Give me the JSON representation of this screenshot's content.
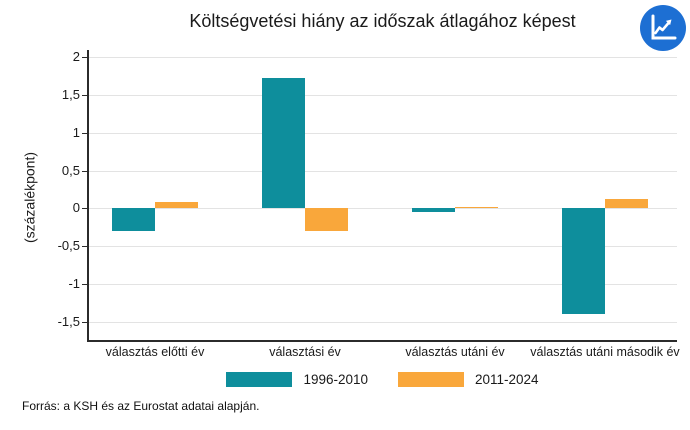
{
  "header": {
    "logo_icon": "line-chart-icon",
    "logo_color": "#1d6fd3"
  },
  "chart_data": {
    "type": "bar",
    "title": "Költségvetési hiány az időszak átlagához képest",
    "xlabel": "",
    "ylabel": "(százalékpont)",
    "categories": [
      "választás előtti év",
      "választási év",
      "választás utáni év",
      "választás utáni második év"
    ],
    "series": [
      {
        "name": "1996-2010",
        "color": "#0e8e9c",
        "values": [
          -0.3,
          1.72,
          -0.05,
          -1.4
        ]
      },
      {
        "name": "2011-2024",
        "color": "#f9a73b",
        "values": [
          0.09,
          -0.3,
          0.02,
          0.13
        ]
      }
    ],
    "y_ticks": [
      2,
      1.5,
      1,
      0.5,
      0,
      -0.5,
      -1,
      -1.5
    ],
    "y_tick_labels": [
      "2",
      "1,5",
      "1",
      "0,5",
      "0",
      "-0,5",
      "-1",
      "-1,5"
    ],
    "ylim": [
      -1.74,
      2.0
    ],
    "grid": "horizontal",
    "gridline_color": "#e3e3e3",
    "legend_position": "bottom"
  },
  "footer": {
    "source": "Forrás: a KSH és az Eurostat adatai alapján."
  }
}
